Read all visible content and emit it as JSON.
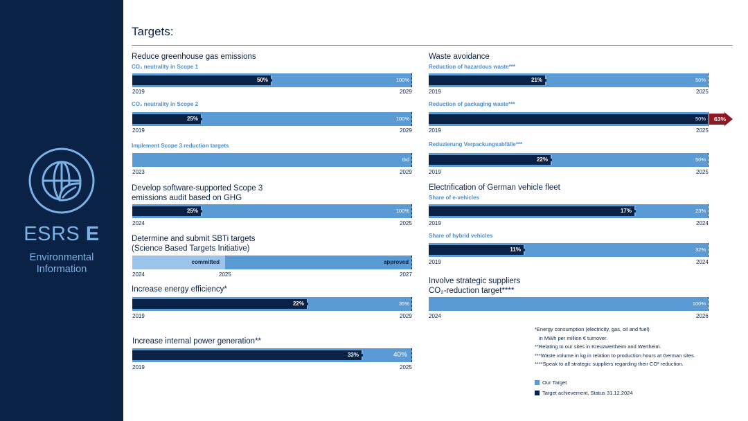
{
  "sidebar": {
    "brand_prefix": "ESRS",
    "brand_letter": "E",
    "subtitle_line1": "Environmental",
    "subtitle_line2": "Information"
  },
  "page_title": "Targets:",
  "colors": {
    "navy": "#0a2246",
    "target_blue": "#5b9bd5",
    "committed_blue": "#9cc3ea",
    "heading_blue": "#4b8ccf",
    "exceeded_red": "#8b1a24"
  },
  "sections": {
    "ghg": "Reduce greenhouse gas emissions",
    "scope3_audit_line1": "Develop software-supported Scope 3",
    "scope3_audit_line2": "emissions audit based on GHG",
    "sbti_line1": "Determine and submit SBTi targets",
    "sbti_line2": "(Science Based Targets Initiative)",
    "energy": "Increase energy efficiency*",
    "power": "Increase internal power generation**",
    "waste": "Waste avoidance",
    "fleet": "Electrification of German vehicle fleet",
    "suppliers_line1": "Involve strategic suppliers",
    "suppliers_line2": "CO₂-reduction target****"
  },
  "chart_data": {
    "type": "bar",
    "series": [
      {
        "name": "Our Target"
      },
      {
        "name": "Target achievement, Status 31.12.2024"
      }
    ],
    "bars": [
      {
        "id": "scope1",
        "subtitle": "CO₂ neutrality in Scope 1",
        "achievement": 50,
        "achievement_label": "50%",
        "target_label": "100%",
        "target_value": 100,
        "start": "2019",
        "end": "2029"
      },
      {
        "id": "scope2",
        "subtitle": "CO₂ neutrality in Scope 2",
        "achievement": 25,
        "achievement_label": "25%",
        "target_label": "100%",
        "target_value": 100,
        "start": "2019",
        "end": "2029"
      },
      {
        "id": "scope3",
        "subtitle": "Implement Scope 3 reduction targets",
        "achievement": 0,
        "achievement_label": "",
        "target_label": "tbd",
        "target_value": null,
        "start": "2023",
        "end": "2029"
      },
      {
        "id": "audit",
        "achievement": 25,
        "achievement_label": "25%",
        "target_label": "100%",
        "target_value": 100,
        "start": "2024",
        "end": "2025"
      },
      {
        "id": "sbti",
        "committed_label": "committed",
        "approved_label": "approved",
        "start": "2024",
        "mid": "2025",
        "end": "2027"
      },
      {
        "id": "energy",
        "achievement": 22,
        "target_value": 35,
        "achievement_label": "22%",
        "target_label": "35%",
        "start": "2019",
        "end": "2029"
      },
      {
        "id": "power",
        "achievement": 33,
        "target_value": 40,
        "achievement_label": "33%",
        "target_label": "40%",
        "start": "2019",
        "end": "2025"
      },
      {
        "id": "hazardous",
        "subtitle": "Reduction of hazardous waste***",
        "achievement": 21,
        "target_value": 50,
        "achievement_label": "21%",
        "target_label": "50%",
        "start": "2019",
        "end": "2025"
      },
      {
        "id": "packaging",
        "subtitle": "Reduction of packaging waste***",
        "achievement": 63,
        "target_value": 50,
        "achievement_label": "63%",
        "target_label": "50%",
        "start": "2019",
        "end": "2025"
      },
      {
        "id": "verpackung",
        "subtitle": "Reduzierung Verpackungsabfälle***",
        "achievement": 22,
        "target_value": 50,
        "achievement_label": "22%",
        "target_label": "50%",
        "start": "2019",
        "end": "2025"
      },
      {
        "id": "evehicles",
        "subtitle": "Share of e-vehicles",
        "achievement": 17,
        "target_value": 23,
        "achievement_label": "17%",
        "target_label": "23%",
        "start": "2019",
        "end": "2024"
      },
      {
        "id": "hybrid",
        "subtitle": "Share of hybrid vehicles",
        "achievement": 11,
        "target_value": 32,
        "achievement_label": "11%",
        "target_label": "32%",
        "start": "2019",
        "end": "2024"
      },
      {
        "id": "suppliers",
        "achievement": 0,
        "achievement_label": "",
        "target_label": "100%",
        "target_value": 100,
        "start": "2024",
        "end": "2026"
      }
    ]
  },
  "footnotes": {
    "f1a": "*Energy consumption (electricity, gas, oil and fuel)",
    "f1b": "in MWh per million € turnover.",
    "f2": "**Relating to our sites in Kreuzwertheim and Wertheim.",
    "f3": "***Waste volume in kg in relation to production hours at German sites.",
    "f4": "****Speak to all strategic suppliers regarding their CO² reduction."
  },
  "legend": {
    "target": "Our Target",
    "achievement": "Target achievement, Status 31.12.2024"
  }
}
